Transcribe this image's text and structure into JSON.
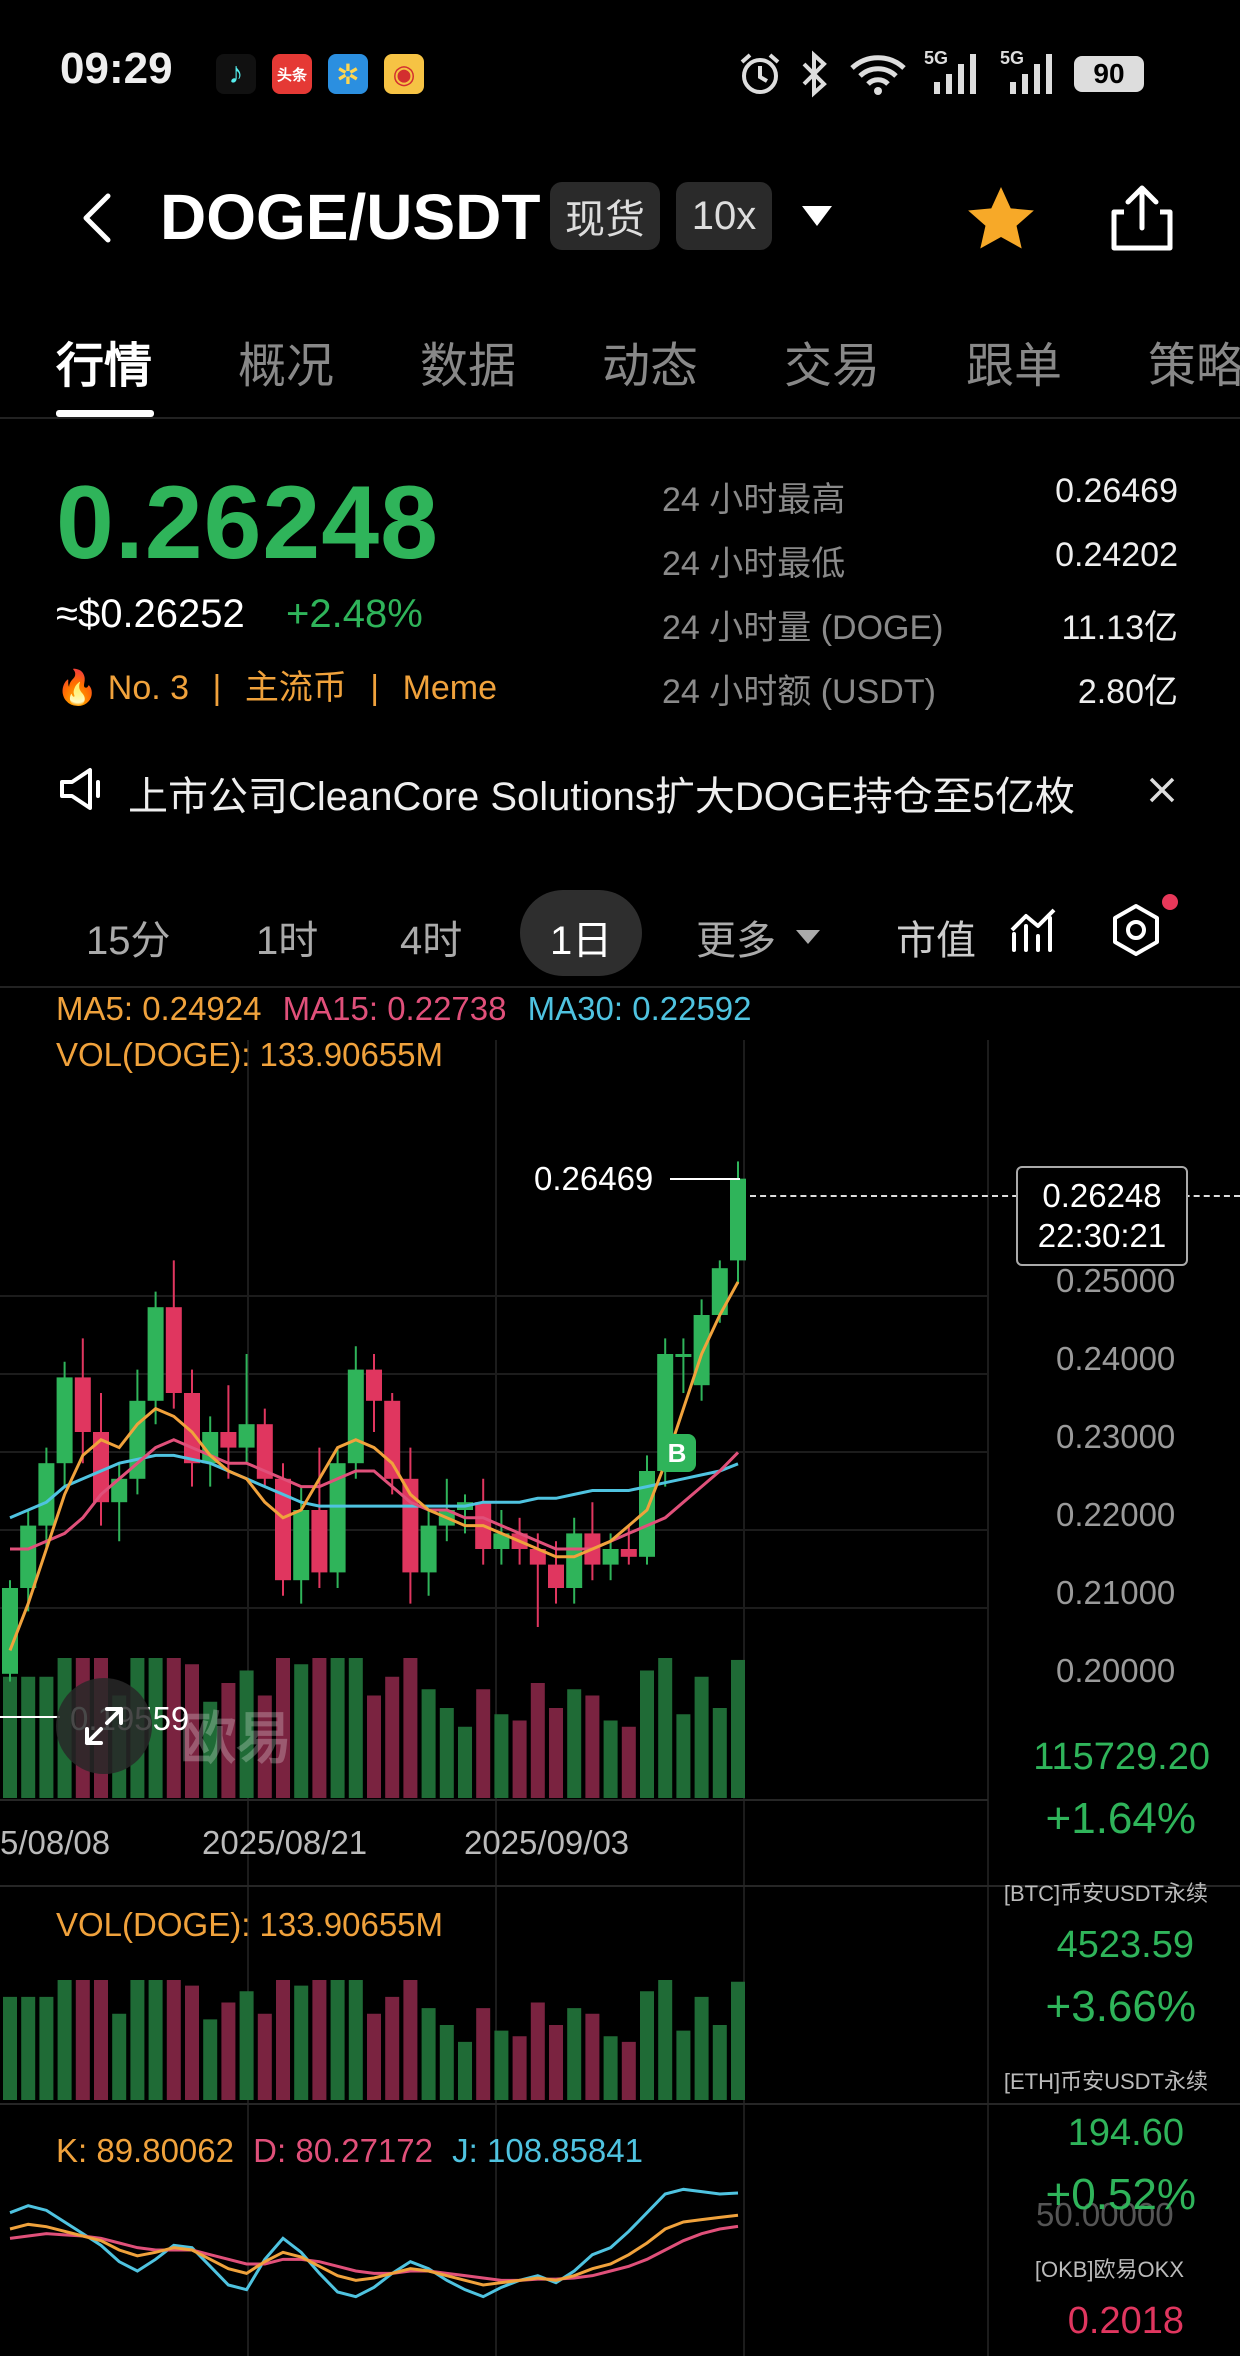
{
  "status_bar": {
    "time": "09:29",
    "app_icons": [
      "tiktok-icon",
      "toutiao-icon",
      "pinwheel-icon",
      "weibo-icon"
    ],
    "toutiao_label": "头条",
    "network_1": "5G",
    "network_2": "5G",
    "battery": "90"
  },
  "header": {
    "title": "DOGE/USDT",
    "market_type": "现货",
    "leverage": "10x"
  },
  "tabs": [
    {
      "label": "行情",
      "active": true
    },
    {
      "label": "概况"
    },
    {
      "label": "数据"
    },
    {
      "label": "动态"
    },
    {
      "label": "交易"
    },
    {
      "label": "跟单"
    },
    {
      "label": "策略"
    }
  ],
  "price": {
    "last": "0.26248",
    "usd": "≈$0.26252",
    "change_pct": "+2.48%",
    "rank": "No. 3",
    "tag1": "主流币",
    "tag2": "Meme"
  },
  "stats": [
    {
      "label": "24 小时最高",
      "value": "0.26469"
    },
    {
      "label": "24 小时最低",
      "value": "0.24202"
    },
    {
      "label": "24 小时量 (DOGE)",
      "value": "11.13亿"
    },
    {
      "label": "24 小时额 (USDT)",
      "value": "2.80亿"
    }
  ],
  "news": {
    "text": "上市公司CleanCore Solutions扩大DOGE持仓至5亿枚"
  },
  "intervals": {
    "i15m": "15分",
    "i1h": "1时",
    "i4h": "4时",
    "i1d": "1日",
    "more": "更多",
    "market_cap": "市值"
  },
  "indicators": {
    "ma5": "MA5: 0.24924",
    "ma15": "MA15: 0.22738",
    "ma30": "MA30: 0.22592",
    "vol_main": "VOL(DOGE): 133.90655M",
    "vol_sub": "VOL(DOGE): 133.90655M",
    "k": "K: 89.80062",
    "d": "D: 80.27172",
    "j": "J: 108.85841",
    "high_marker": "0.26469",
    "low_marker": "0.19559",
    "current_price_box": "0.26248",
    "current_time_box": "22:30:21",
    "kdj_axis": "50.00000",
    "watermark": "欧易",
    "buy_badge": "B"
  },
  "price_axis": [
    "0.25000",
    "0.24000",
    "0.23000",
    "0.22000",
    "0.21000",
    "0.20000"
  ],
  "date_axis": [
    "5/08/08",
    "2025/08/21",
    "2025/09/03"
  ],
  "ticker": [
    {
      "value": "115729.20",
      "pct": "+1.64%",
      "name": "[BTC]币安USDT永续"
    },
    {
      "value": "4523.59",
      "pct": "+3.66%",
      "name": "[ETH]币安USDT永续"
    },
    {
      "value": "194.60",
      "pct": "+0.52%",
      "name": "[OKB]欧易OKX"
    },
    {
      "value": "0.2018",
      "pct": "",
      "name": ""
    }
  ],
  "colors": {
    "up": "#2fb45a",
    "down": "#e0365f",
    "ma5": "#f0a23c",
    "ma15": "#e0507a",
    "ma30": "#4fc3e0",
    "accent_orange": "#f0a23c"
  },
  "chart_data": {
    "type": "candlestick",
    "price_ylim": [
      0.19559,
      0.26469
    ],
    "x_dates": [
      "2025/08/21",
      "2025/09/03"
    ],
    "candles": [
      {
        "o": 0.199,
        "h": 0.211,
        "l": 0.198,
        "c": 0.21
      },
      {
        "o": 0.21,
        "h": 0.22,
        "l": 0.207,
        "c": 0.218
      },
      {
        "o": 0.218,
        "h": 0.228,
        "l": 0.215,
        "c": 0.226
      },
      {
        "o": 0.226,
        "h": 0.239,
        "l": 0.223,
        "c": 0.237
      },
      {
        "o": 0.237,
        "h": 0.242,
        "l": 0.226,
        "c": 0.23
      },
      {
        "o": 0.23,
        "h": 0.235,
        "l": 0.218,
        "c": 0.221
      },
      {
        "o": 0.221,
        "h": 0.226,
        "l": 0.216,
        "c": 0.224
      },
      {
        "o": 0.224,
        "h": 0.238,
        "l": 0.222,
        "c": 0.234
      },
      {
        "o": 0.234,
        "h": 0.248,
        "l": 0.231,
        "c": 0.246
      },
      {
        "o": 0.246,
        "h": 0.252,
        "l": 0.233,
        "c": 0.235
      },
      {
        "o": 0.235,
        "h": 0.238,
        "l": 0.223,
        "c": 0.226
      },
      {
        "o": 0.226,
        "h": 0.232,
        "l": 0.223,
        "c": 0.23
      },
      {
        "o": 0.23,
        "h": 0.236,
        "l": 0.224,
        "c": 0.228
      },
      {
        "o": 0.228,
        "h": 0.24,
        "l": 0.226,
        "c": 0.231
      },
      {
        "o": 0.231,
        "h": 0.233,
        "l": 0.223,
        "c": 0.224
      },
      {
        "o": 0.224,
        "h": 0.226,
        "l": 0.209,
        "c": 0.211
      },
      {
        "o": 0.211,
        "h": 0.223,
        "l": 0.208,
        "c": 0.22
      },
      {
        "o": 0.22,
        "h": 0.228,
        "l": 0.21,
        "c": 0.212
      },
      {
        "o": 0.212,
        "h": 0.228,
        "l": 0.21,
        "c": 0.226
      },
      {
        "o": 0.226,
        "h": 0.241,
        "l": 0.224,
        "c": 0.238
      },
      {
        "o": 0.238,
        "h": 0.24,
        "l": 0.23,
        "c": 0.234
      },
      {
        "o": 0.234,
        "h": 0.235,
        "l": 0.222,
        "c": 0.224
      },
      {
        "o": 0.224,
        "h": 0.228,
        "l": 0.208,
        "c": 0.212
      },
      {
        "o": 0.212,
        "h": 0.22,
        "l": 0.209,
        "c": 0.218
      },
      {
        "o": 0.218,
        "h": 0.224,
        "l": 0.216,
        "c": 0.22
      },
      {
        "o": 0.22,
        "h": 0.222,
        "l": 0.217,
        "c": 0.221
      },
      {
        "o": 0.221,
        "h": 0.224,
        "l": 0.213,
        "c": 0.215
      },
      {
        "o": 0.215,
        "h": 0.22,
        "l": 0.213,
        "c": 0.217
      },
      {
        "o": 0.217,
        "h": 0.219,
        "l": 0.213,
        "c": 0.215
      },
      {
        "o": 0.215,
        "h": 0.217,
        "l": 0.205,
        "c": 0.213
      },
      {
        "o": 0.213,
        "h": 0.216,
        "l": 0.208,
        "c": 0.21
      },
      {
        "o": 0.21,
        "h": 0.219,
        "l": 0.208,
        "c": 0.217
      },
      {
        "o": 0.217,
        "h": 0.221,
        "l": 0.211,
        "c": 0.213
      },
      {
        "o": 0.213,
        "h": 0.217,
        "l": 0.211,
        "c": 0.215
      },
      {
        "o": 0.215,
        "h": 0.218,
        "l": 0.213,
        "c": 0.214
      },
      {
        "o": 0.214,
        "h": 0.227,
        "l": 0.213,
        "c": 0.225
      },
      {
        "o": 0.225,
        "h": 0.242,
        "l": 0.223,
        "c": 0.24
      },
      {
        "o": 0.24,
        "h": 0.242,
        "l": 0.235,
        "c": 0.24
      },
      {
        "o": 0.236,
        "h": 0.247,
        "l": 0.234,
        "c": 0.245
      },
      {
        "o": 0.245,
        "h": 0.252,
        "l": 0.244,
        "c": 0.251
      },
      {
        "o": 0.252,
        "h": 0.26469,
        "l": 0.249,
        "c": 0.26248
      }
    ],
    "ma5": [
      0.202,
      0.208,
      0.215,
      0.222,
      0.227,
      0.229,
      0.228,
      0.231,
      0.233,
      0.232,
      0.23,
      0.227,
      0.225,
      0.224,
      0.221,
      0.219,
      0.22,
      0.224,
      0.228,
      0.229,
      0.228,
      0.226,
      0.222,
      0.22,
      0.219,
      0.218,
      0.218,
      0.217,
      0.216,
      0.215,
      0.214,
      0.214,
      0.215,
      0.216,
      0.218,
      0.22,
      0.226,
      0.233,
      0.24,
      0.245,
      0.24924
    ],
    "ma15": [
      0.215,
      0.215,
      0.216,
      0.217,
      0.219,
      0.222,
      0.224,
      0.226,
      0.228,
      0.229,
      0.228,
      0.227,
      0.226,
      0.226,
      0.225,
      0.224,
      0.223,
      0.223,
      0.224,
      0.225,
      0.225,
      0.223,
      0.221,
      0.22,
      0.22,
      0.219,
      0.219,
      0.218,
      0.217,
      0.216,
      0.215,
      0.215,
      0.215,
      0.216,
      0.217,
      0.218,
      0.219,
      0.221,
      0.223,
      0.225,
      0.22738
    ],
    "ma30": [
      0.219,
      0.22,
      0.221,
      0.223,
      0.224,
      0.225,
      0.226,
      0.2265,
      0.227,
      0.227,
      0.2265,
      0.226,
      0.225,
      0.224,
      0.223,
      0.222,
      0.221,
      0.2205,
      0.2205,
      0.2205,
      0.2205,
      0.2205,
      0.2205,
      0.2205,
      0.2205,
      0.2205,
      0.221,
      0.221,
      0.221,
      0.2215,
      0.2215,
      0.222,
      0.2225,
      0.2225,
      0.2225,
      0.223,
      0.2235,
      0.224,
      0.2245,
      0.225,
      0.22592
    ],
    "kdj_k": [
      78,
      82,
      80,
      76,
      72,
      68,
      60,
      55,
      58,
      62,
      60,
      52,
      44,
      40,
      50,
      58,
      54,
      46,
      38,
      34,
      36,
      40,
      44,
      42,
      38,
      34,
      30,
      32,
      34,
      36,
      34,
      38,
      44,
      48,
      56,
      66,
      78,
      84,
      86,
      88,
      89.8
    ],
    "kdj_d": [
      70,
      72,
      74,
      73,
      72,
      70,
      66,
      62,
      60,
      60,
      60,
      56,
      52,
      48,
      48,
      52,
      52,
      50,
      46,
      42,
      40,
      40,
      42,
      42,
      40,
      38,
      36,
      34,
      34,
      35,
      35,
      36,
      38,
      42,
      46,
      52,
      60,
      68,
      74,
      78,
      80.27
    ],
    "kdj_j": [
      92,
      98,
      94,
      84,
      74,
      64,
      50,
      42,
      52,
      64,
      62,
      46,
      30,
      26,
      52,
      70,
      58,
      40,
      24,
      20,
      28,
      40,
      50,
      44,
      34,
      26,
      20,
      28,
      34,
      38,
      32,
      42,
      56,
      62,
      76,
      92,
      108,
      112,
      110,
      108,
      108.86
    ]
  }
}
